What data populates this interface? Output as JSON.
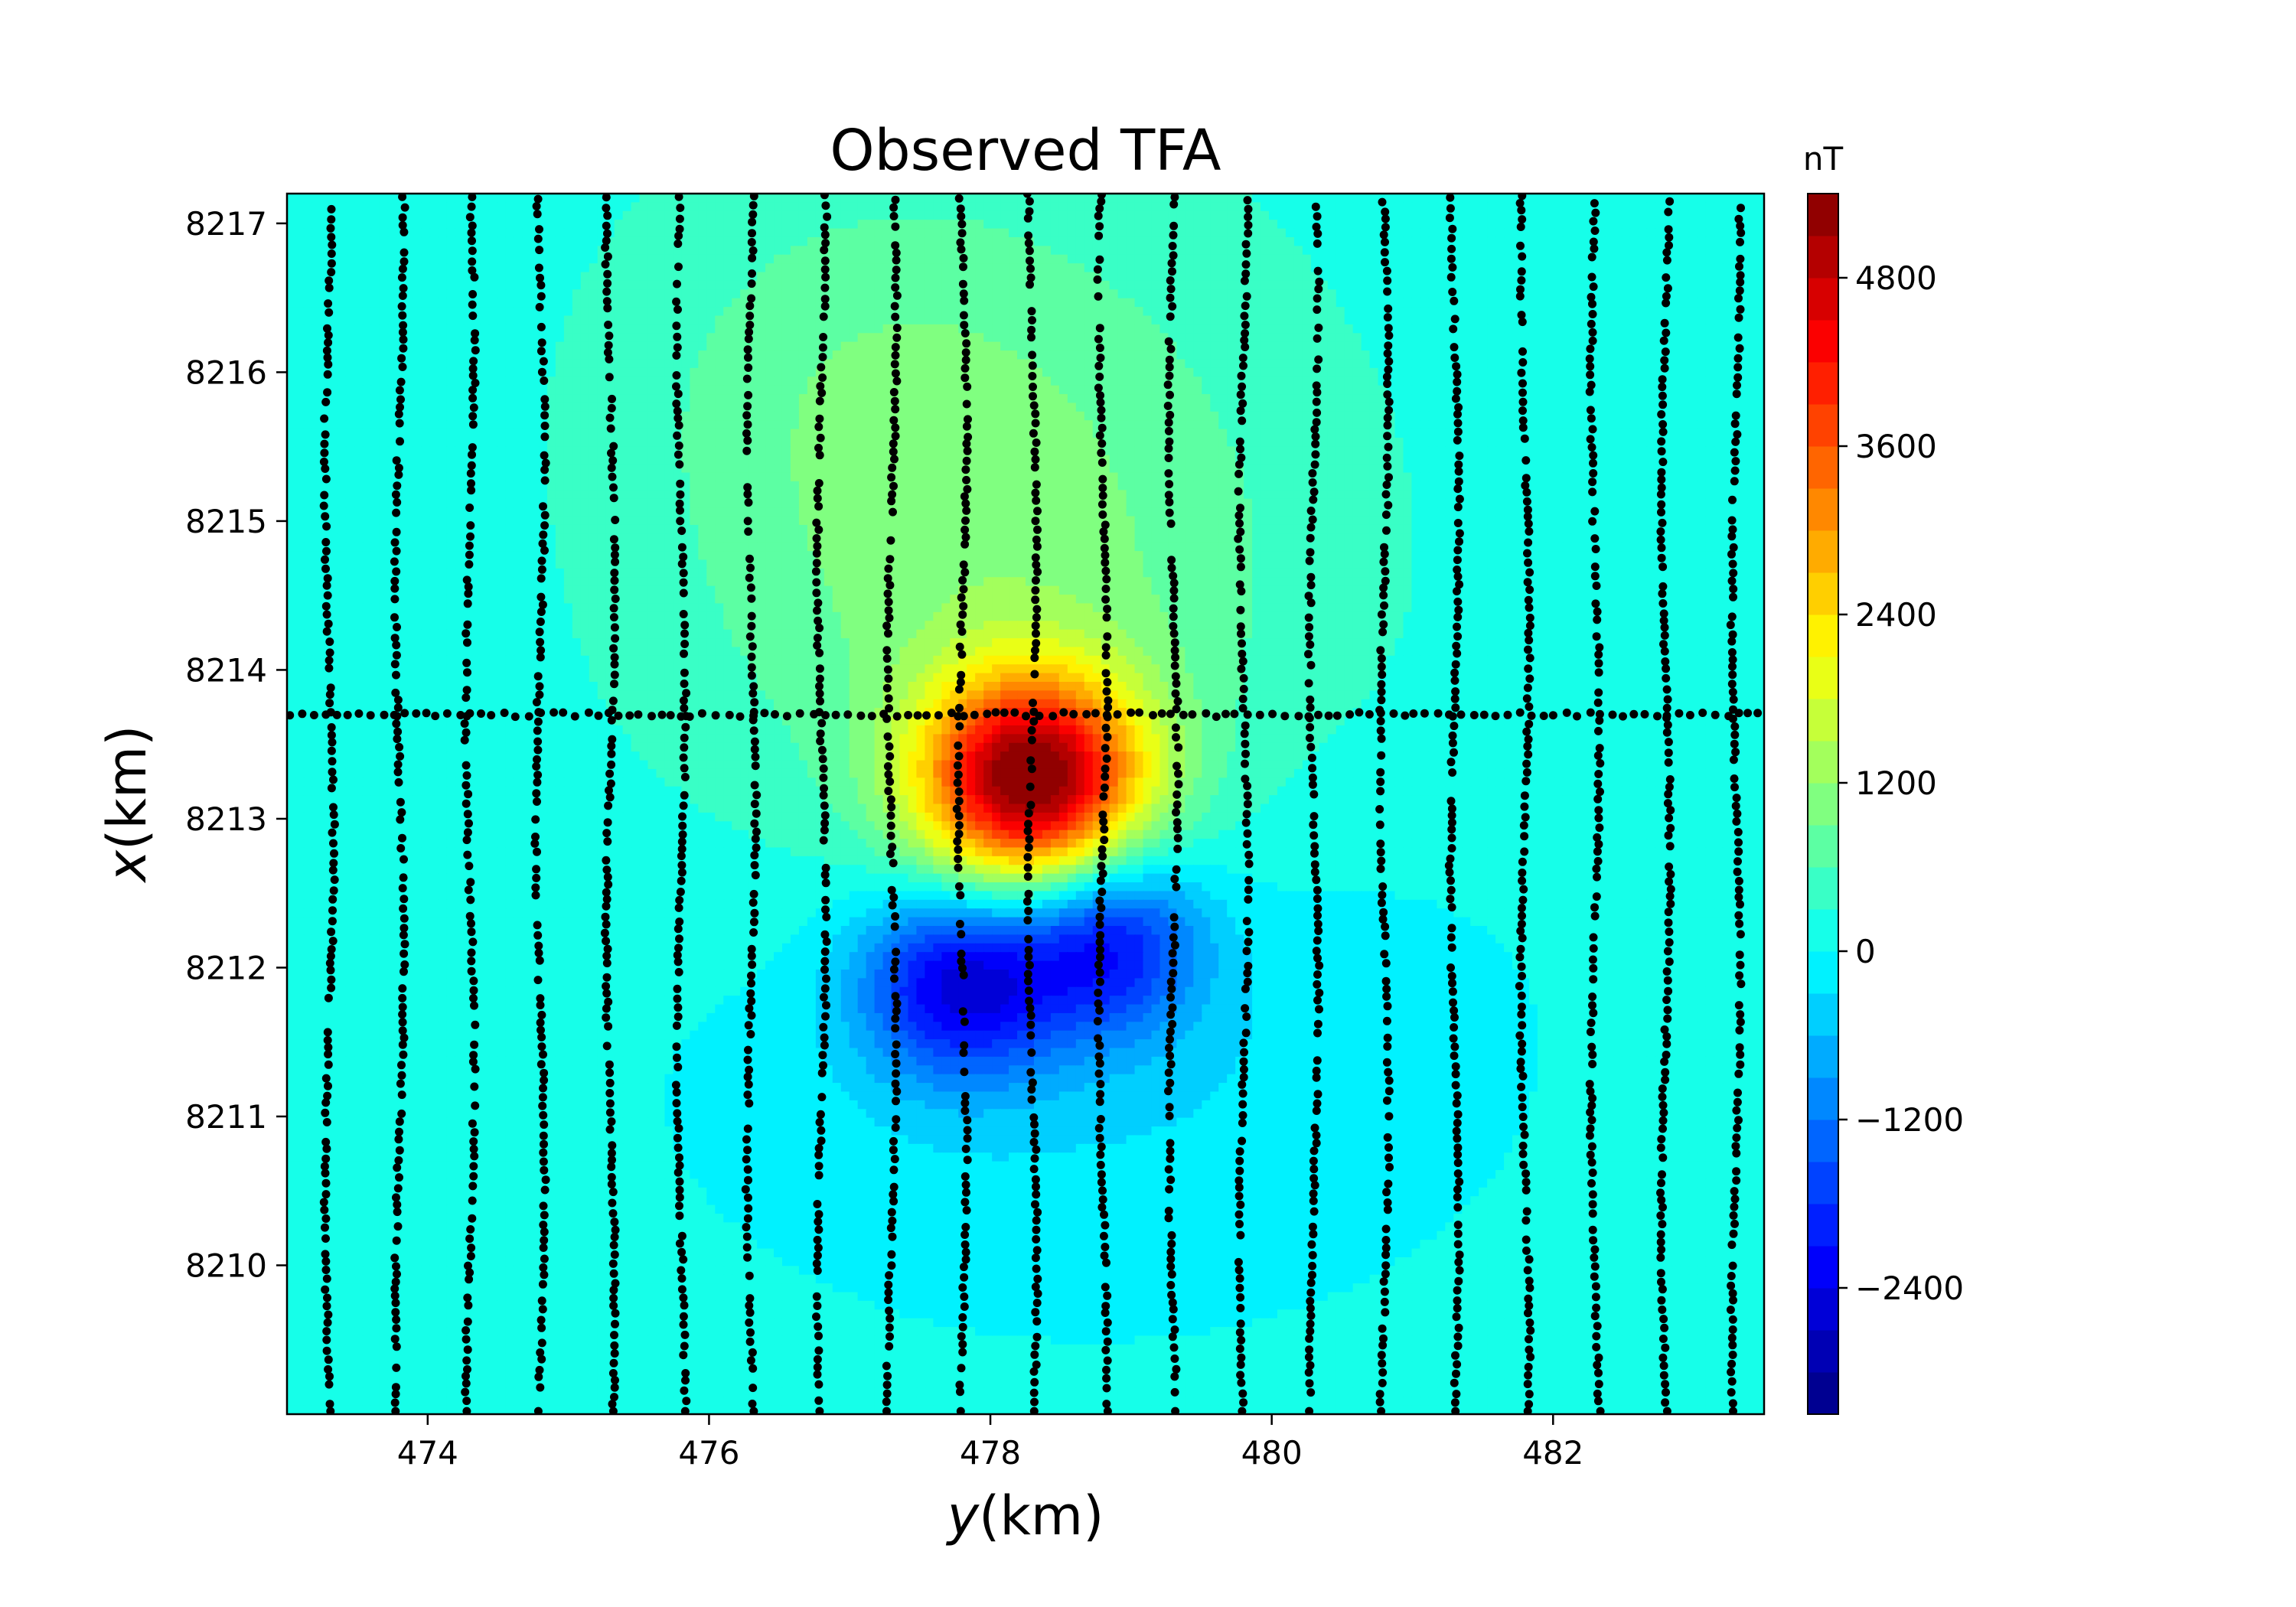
{
  "chart_data": {
    "type": "heatmap",
    "subtype": "filled-contour-with-survey-points",
    "title": "Observed TFA",
    "xlabel": {
      "var": "y",
      "unit": "(km)"
    },
    "ylabel": {
      "var": "x",
      "unit": "(km)"
    },
    "xlim": [
      473.0,
      483.5
    ],
    "ylim": [
      8209.0,
      8217.2
    ],
    "xticks": [
      474,
      476,
      478,
      480,
      482
    ],
    "xtick_labels": [
      "474",
      "476",
      "478",
      "480",
      "482"
    ],
    "yticks": [
      8210,
      8211,
      8212,
      8213,
      8214,
      8215,
      8216,
      8217
    ],
    "ytick_labels": [
      "8210",
      "8211",
      "8212",
      "8213",
      "8214",
      "8215",
      "8216",
      "8217"
    ],
    "grid": false,
    "colorbar": {
      "label": "nT",
      "colormap": "jet",
      "levels_min": -3300,
      "levels_max": 5400,
      "level_step": 300,
      "ticks": [
        -2400,
        -1200,
        0,
        1200,
        2400,
        3600,
        4800
      ],
      "tick_labels": [
        "−2400",
        "−1200",
        "0",
        "1200",
        "2400",
        "3600",
        "4800"
      ]
    },
    "background_value": 150,
    "anomalies": [
      {
        "name": "positive-peak",
        "y": 478.3,
        "x": 8213.25,
        "amplitude": 5100,
        "sy": 0.55,
        "sx": 0.5
      },
      {
        "name": "positive-halo",
        "y": 478.1,
        "x": 8214.3,
        "amplitude": 900,
        "sy": 1.6,
        "sx": 1.8
      },
      {
        "name": "north-lobe",
        "y": 477.0,
        "x": 8216.0,
        "amplitude": 350,
        "sy": 1.2,
        "sx": 1.0
      },
      {
        "name": "negative-low-west",
        "y": 477.8,
        "x": 8211.9,
        "amplitude": -2500,
        "sy": 0.5,
        "sx": 0.45
      },
      {
        "name": "negative-low-east",
        "y": 478.85,
        "x": 8212.2,
        "amplitude": -2100,
        "sy": 0.45,
        "sx": 0.45
      },
      {
        "name": "negative-halo",
        "y": 478.6,
        "x": 8211.6,
        "amplitude": -650,
        "sy": 2.0,
        "sx": 1.3
      }
    ],
    "survey_lines": {
      "north_south_lines_y": [
        473.3,
        473.8,
        474.3,
        474.8,
        475.3,
        475.8,
        476.3,
        476.8,
        477.3,
        477.8,
        478.3,
        478.8,
        479.3,
        479.8,
        480.3,
        480.8,
        481.3,
        481.8,
        482.3,
        482.8,
        483.3
      ],
      "tie_line_x": 8213.7,
      "series": [
        {
          "name": "survey points",
          "marker": "circle",
          "color": "#000000"
        }
      ]
    }
  }
}
